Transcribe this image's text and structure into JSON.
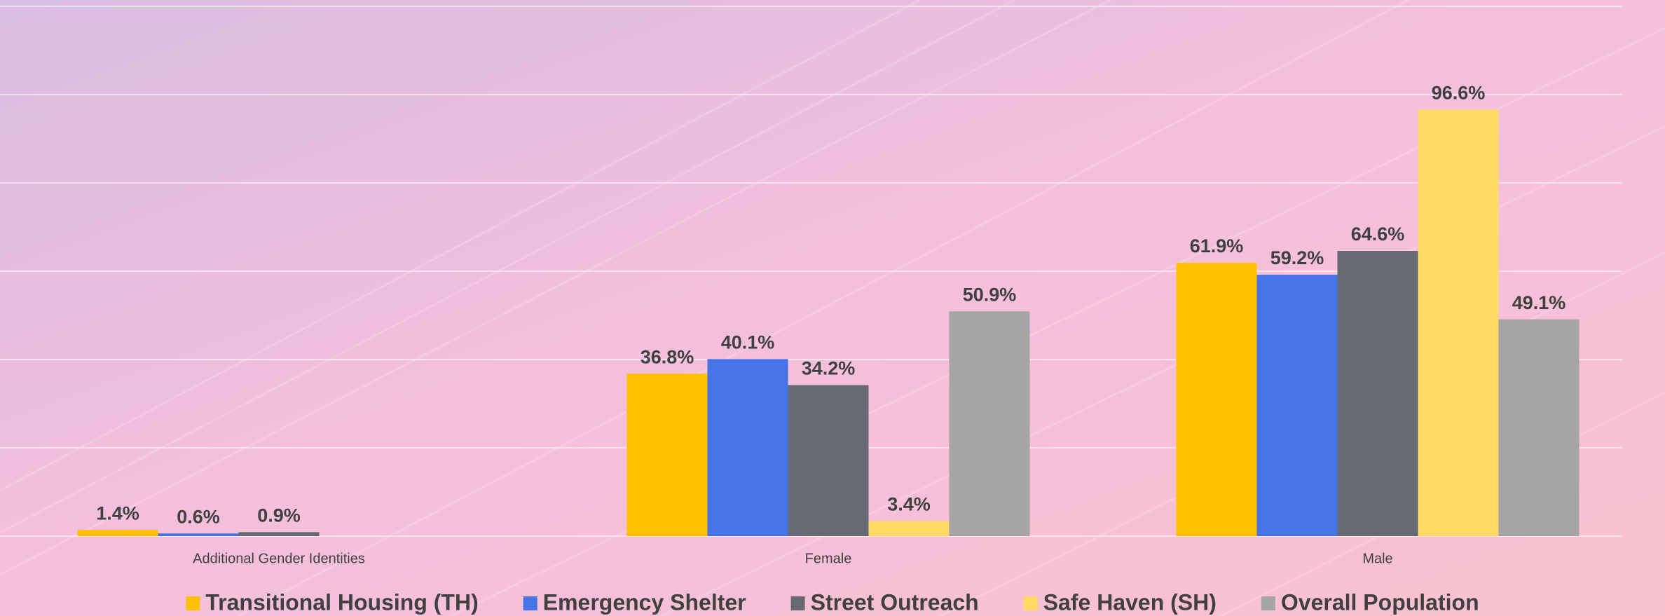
{
  "chart_data": {
    "type": "bar",
    "categories": [
      "Additional Gender Identities",
      "Female",
      "Male"
    ],
    "series": [
      {
        "name": "Transitional Housing (TH)",
        "color": "#ffc000",
        "values": [
          1.4,
          36.8,
          61.9
        ],
        "value_labels": [
          "1.4%",
          "36.8%",
          "61.9%"
        ]
      },
      {
        "name": "Emergency Shelter",
        "color": "#4674e6",
        "values": [
          0.6,
          40.1,
          59.2
        ],
        "value_labels": [
          "0.6%",
          "40.1%",
          "59.2%"
        ]
      },
      {
        "name": "Street Outreach",
        "color": "#676a72",
        "values": [
          0.9,
          34.2,
          64.6
        ],
        "value_labels": [
          "0.9%",
          "34.2%",
          "64.6%"
        ]
      },
      {
        "name": "Safe Haven (SH)",
        "color": "#ffd966",
        "values": [
          null,
          3.4,
          96.6
        ],
        "value_labels": [
          null,
          "3.4%",
          "96.6%"
        ]
      },
      {
        "name": "Overall Population",
        "color": "#a5a5a5",
        "values": [
          null,
          50.9,
          49.1
        ],
        "value_labels": [
          null,
          "50.9%",
          "49.1%"
        ]
      }
    ],
    "ylim": [
      0,
      120
    ],
    "yticks": [
      0,
      20,
      40,
      60,
      80,
      100,
      120
    ],
    "grid": true,
    "legend": "bottom"
  }
}
